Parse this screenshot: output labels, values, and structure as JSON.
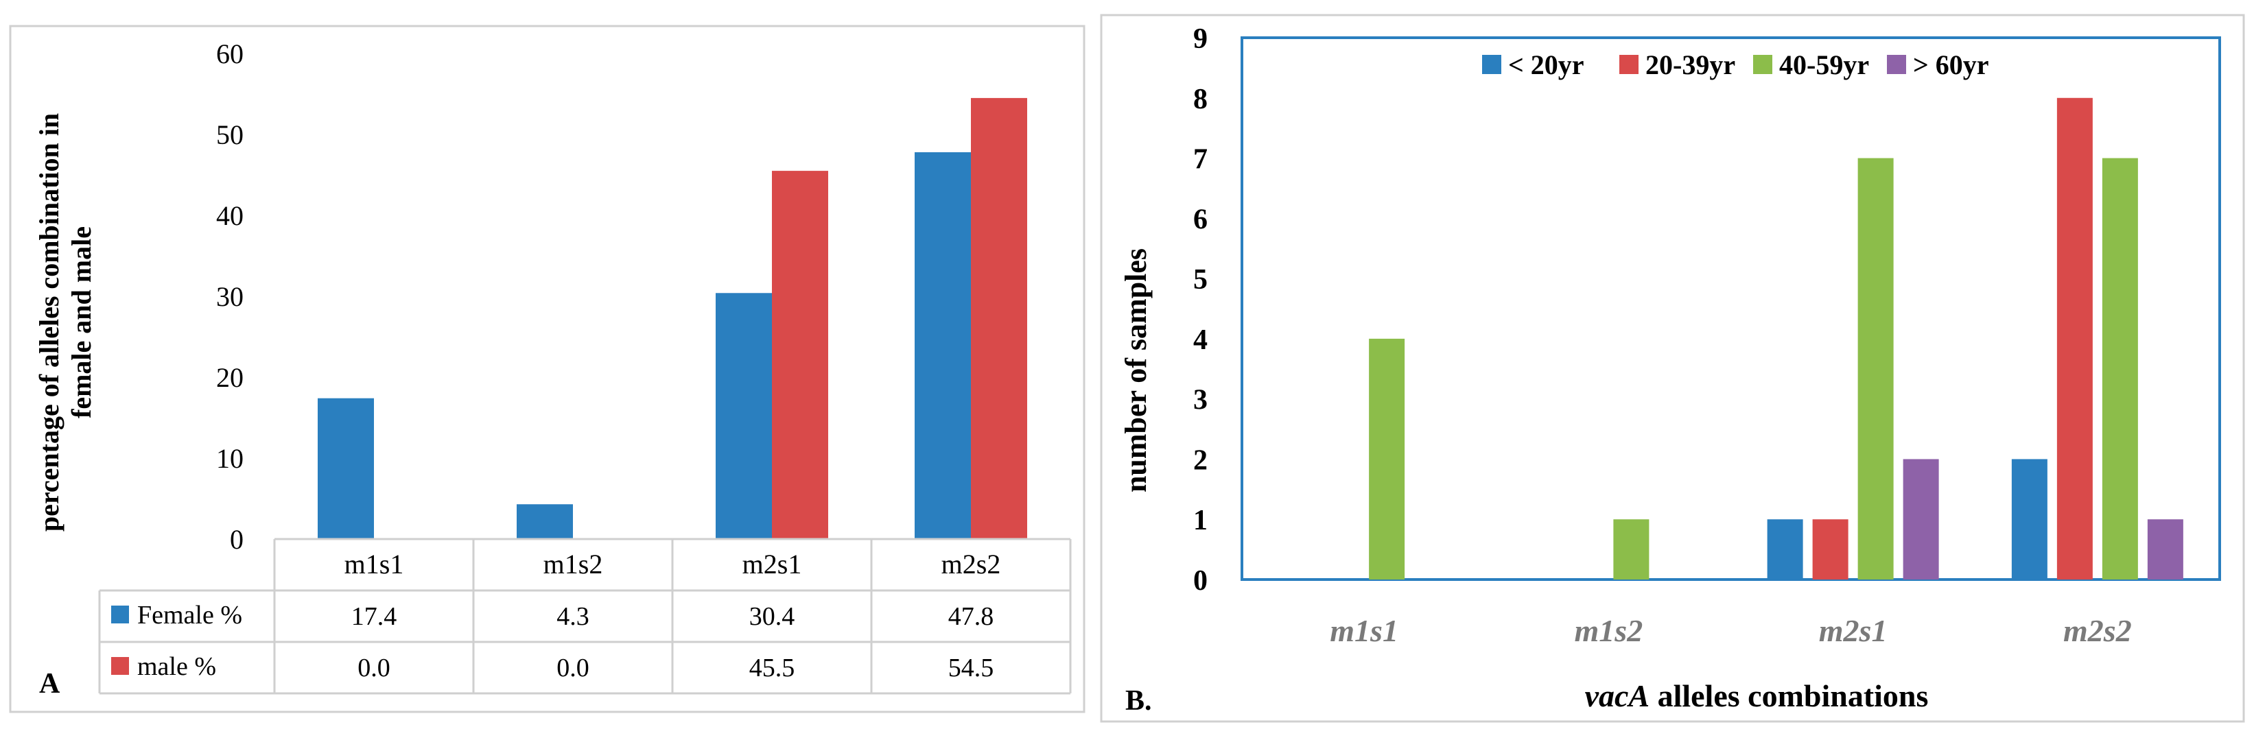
{
  "chart_data": [
    {
      "type": "bar",
      "panel_label": "A",
      "ylabel_line1": "percentage of alleles combination in",
      "ylabel_line2": "female and male",
      "yticks": [
        "0",
        "10",
        "20",
        "30",
        "40",
        "50",
        "60"
      ],
      "ylim": [
        0,
        60
      ],
      "categories": [
        "m1s1",
        "m1s2",
        "m2s1",
        "m2s2"
      ],
      "series": [
        {
          "name": "Female %",
          "color": "#2a7fbf",
          "values": [
            17.4,
            4.3,
            30.4,
            47.8
          ],
          "labels": [
            "17.4",
            "4.3",
            "30.4",
            "47.8"
          ]
        },
        {
          "name": "male %",
          "color": "#d94a4a",
          "values": [
            0.0,
            0.0,
            45.5,
            54.5
          ],
          "labels": [
            "0.0",
            "0.0",
            "45.5",
            "54.5"
          ]
        }
      ],
      "legend": "data-table"
    },
    {
      "type": "bar",
      "panel_label": "B.",
      "xlabel_italic": "vacA",
      "xlabel_rest": " alleles combinations",
      "ylabel": "number of samples",
      "yticks": [
        "0",
        "1",
        "2",
        "3",
        "4",
        "5",
        "6",
        "7",
        "8",
        "9"
      ],
      "ylim": [
        0,
        9
      ],
      "categories": [
        "m1s1",
        "m1s2",
        "m2s1",
        "m2s2"
      ],
      "series": [
        {
          "name": "< 20yr",
          "color": "#2a7fbf",
          "values": [
            0,
            0,
            1,
            2
          ]
        },
        {
          "name": "20-39yr",
          "color": "#d94a4a",
          "values": [
            0,
            0,
            1,
            8
          ]
        },
        {
          "name": "40-59yr",
          "color": "#8cbd4a",
          "values": [
            4,
            1,
            7,
            7
          ]
        },
        {
          "name": "> 60yr",
          "color": "#8e62a8",
          "values": [
            0,
            0,
            2,
            1
          ]
        }
      ],
      "legend": "top-center"
    }
  ]
}
